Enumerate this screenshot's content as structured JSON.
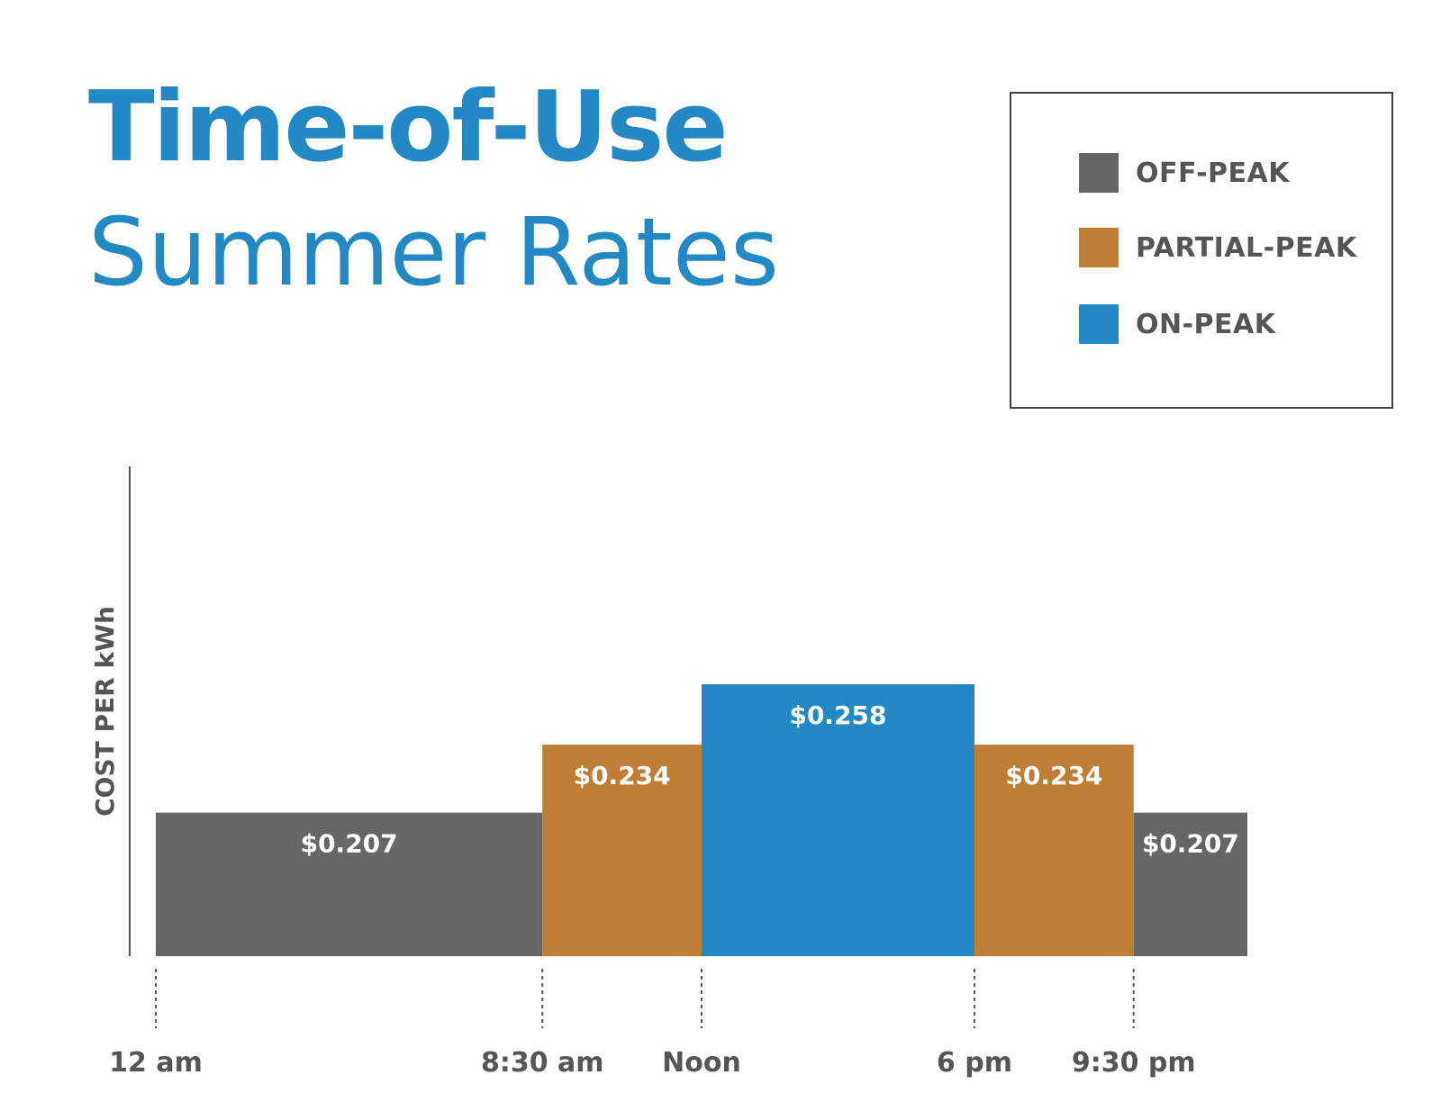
{
  "title": {
    "line1": "Time-of-Use",
    "line2": "Summer Rates"
  },
  "legend": [
    {
      "label": "OFF-PEAK",
      "color": "#666666"
    },
    {
      "label": "PARTIAL-PEAK",
      "color": "#bf7d35"
    },
    {
      "label": "ON-PEAK",
      "color": "#2389c5"
    }
  ],
  "chart_data": {
    "type": "bar",
    "title": "Time-of-Use Summer Rates",
    "ylabel": "COST PER kWh",
    "xlabel": "",
    "x_unit": "hours since midnight",
    "xlim": [
      0,
      24
    ],
    "ylim": [
      0.15,
      0.275
    ],
    "grid": false,
    "legend_position": "top-right",
    "ticks": [
      {
        "label": "12 am",
        "hour": 0
      },
      {
        "label": "8:30 am",
        "hour": 8.5
      },
      {
        "label": "Noon",
        "hour": 12
      },
      {
        "label": "6 pm",
        "hour": 18
      },
      {
        "label": "9:30 pm",
        "hour": 21.5
      }
    ],
    "segments": [
      {
        "start": 0,
        "end": 8.5,
        "value": 0.207,
        "label": "$0.207",
        "category": "OFF-PEAK",
        "color": "#666666"
      },
      {
        "start": 8.5,
        "end": 12,
        "value": 0.234,
        "label": "$0.234",
        "category": "PARTIAL-PEAK",
        "color": "#bf7d35"
      },
      {
        "start": 12,
        "end": 18,
        "value": 0.258,
        "label": "$0.258",
        "category": "ON-PEAK",
        "color": "#2389c5"
      },
      {
        "start": 18,
        "end": 21.5,
        "value": 0.234,
        "label": "$0.234",
        "category": "PARTIAL-PEAK",
        "color": "#bf7d35"
      },
      {
        "start": 21.5,
        "end": 24,
        "value": 0.207,
        "label": "$0.207",
        "category": "OFF-PEAK",
        "color": "#666666"
      }
    ]
  }
}
